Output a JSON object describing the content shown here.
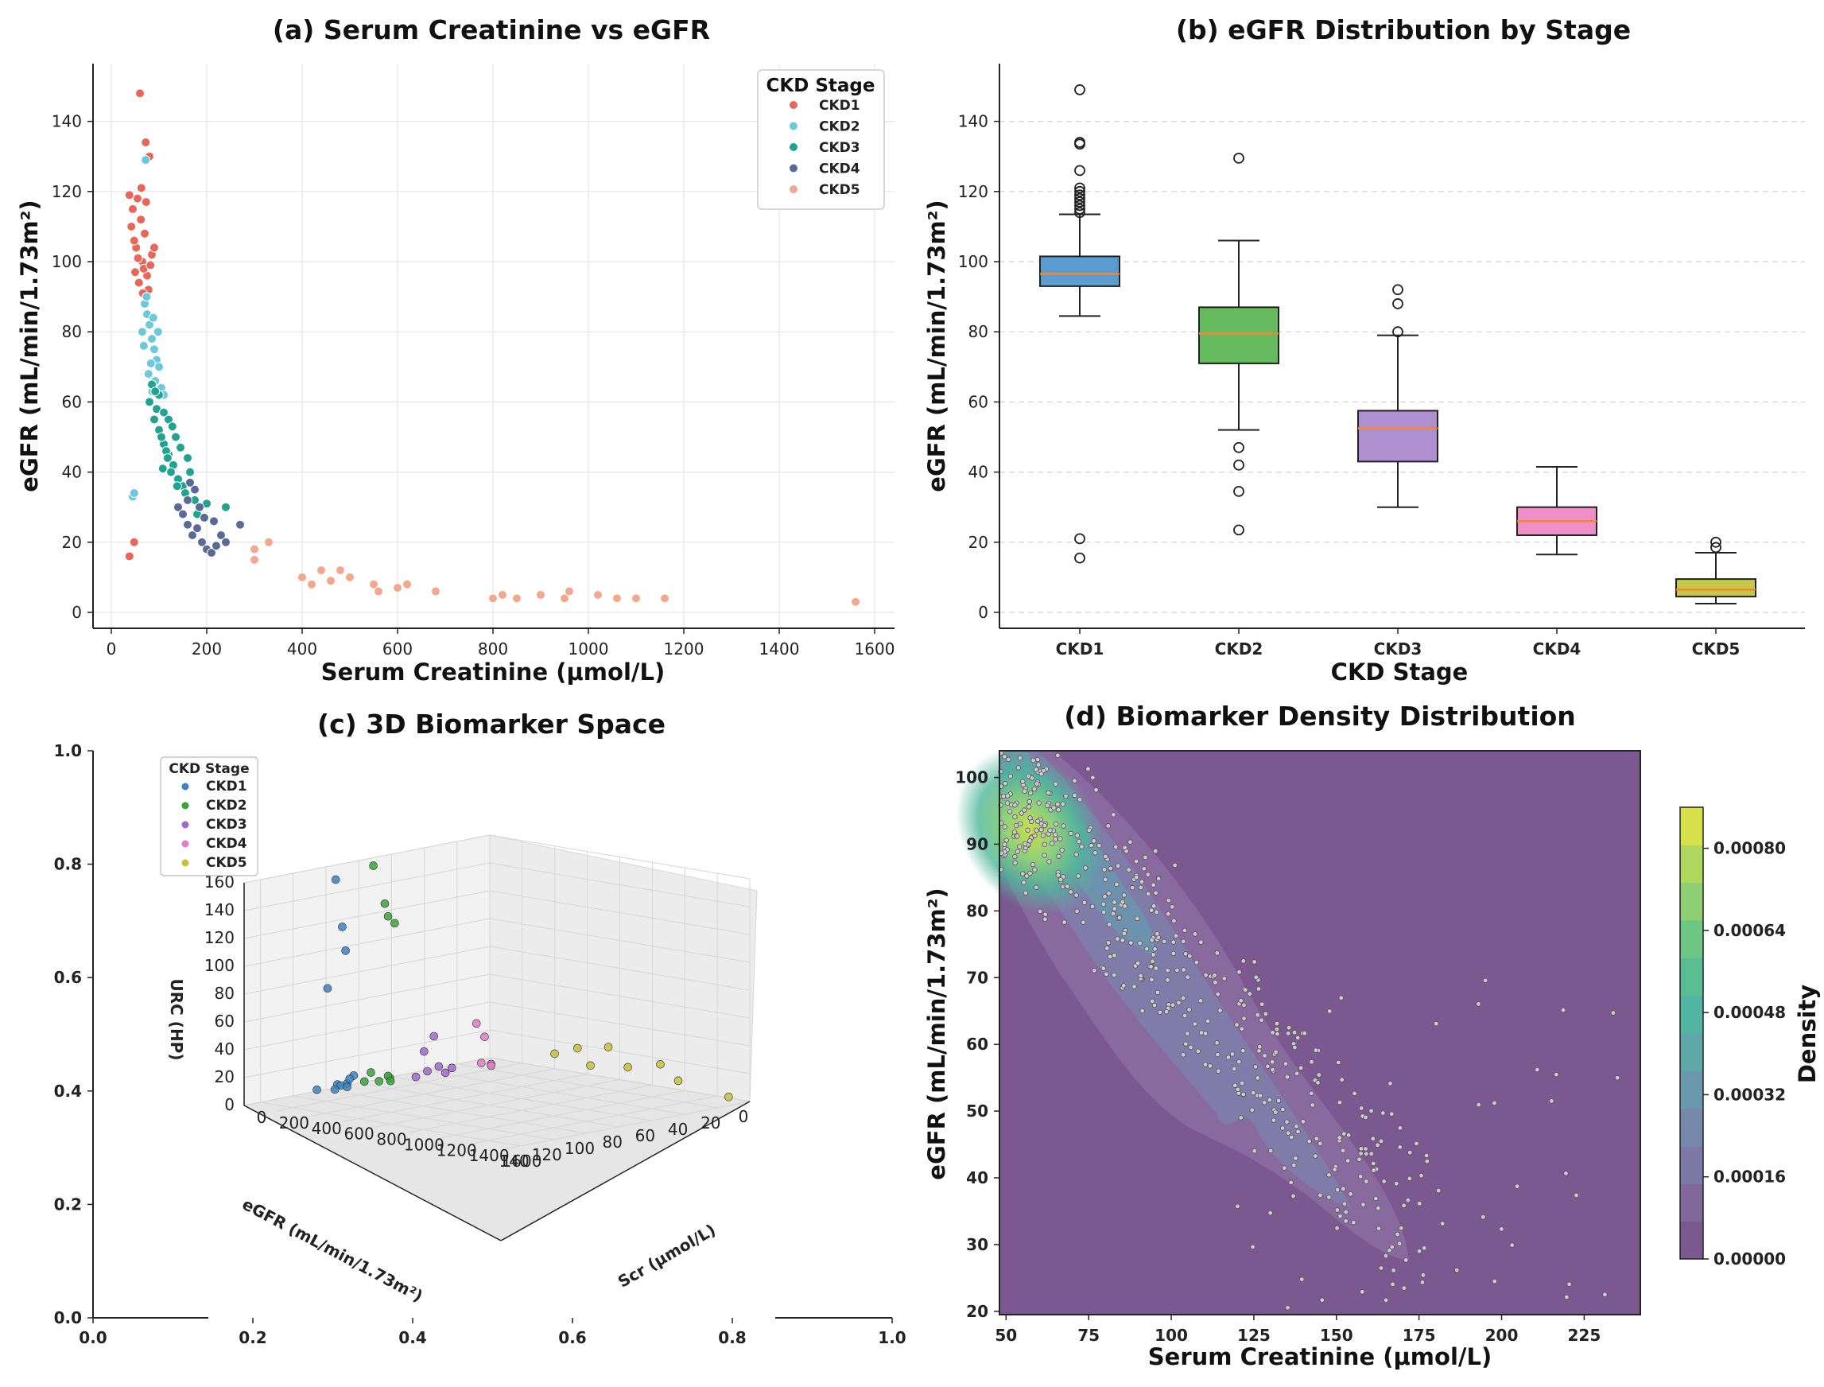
{
  "panel_a": {
    "title": "(a) Serum Creatinine vs eGFR",
    "xlabel": "Serum Creatinine (μmol/L)",
    "ylabel": "eGFR (mL/min/1.73m²)",
    "legend_title": "CKD Stage",
    "legend": [
      {
        "name": "CKD1",
        "color": "#e8675a"
      },
      {
        "name": "CKD2",
        "color": "#6cc8dd"
      },
      {
        "name": "CKD3",
        "color": "#21a391"
      },
      {
        "name": "CKD4",
        "color": "#5a6a97"
      },
      {
        "name": "CKD5",
        "color": "#f2a88f"
      }
    ],
    "xticks": [
      "0",
      "200",
      "400",
      "600",
      "800",
      "1000",
      "1200",
      "1400",
      "1600"
    ],
    "yticks": [
      "0",
      "20",
      "40",
      "60",
      "80",
      "100",
      "120",
      "140"
    ]
  },
  "panel_b": {
    "title": "(b) eGFR Distribution by Stage",
    "xlabel": "CKD Stage",
    "ylabel": "eGFR (mL/min/1.73m²)",
    "yticks": [
      "0",
      "20",
      "40",
      "60",
      "80",
      "100",
      "120",
      "140"
    ]
  },
  "panel_c": {
    "title": "(c) 3D Biomarker Space",
    "legend_title": "CKD Stage",
    "legend": [
      {
        "name": "CKD1",
        "color": "#3c82c3"
      },
      {
        "name": "CKD2",
        "color": "#3aa43a"
      },
      {
        "name": "CKD3",
        "color": "#a169cf"
      },
      {
        "name": "CKD4",
        "color": "#e27bc8"
      },
      {
        "name": "CKD5",
        "color": "#c6c13a"
      }
    ],
    "outer_xticks": [
      "0.0",
      "0.2",
      "0.4",
      "0.6",
      "0.8",
      "1.0"
    ],
    "outer_yticks": [
      "0.0",
      "0.2",
      "0.4",
      "0.6",
      "0.8",
      "1.0"
    ],
    "zlabel": "URC (HP)",
    "egfr_label": "eGFR (mL/min/1.73m²)",
    "scr_label": "Scr (μmol/L)",
    "zticks": [
      "0",
      "20",
      "40",
      "60",
      "80",
      "100",
      "120",
      "140",
      "160"
    ],
    "egfr_ticks": [
      "0",
      "20",
      "40",
      "60",
      "80",
      "100",
      "120",
      "140"
    ],
    "scr_ticks": [
      "0",
      "200",
      "400",
      "600",
      "800",
      "1000",
      "1200",
      "1400",
      "1600"
    ]
  },
  "panel_d": {
    "title": "(d) Biomarker Density Distribution",
    "xlabel": "Serum Creatinine (μmol/L)",
    "ylabel": "eGFR (mL/min/1.73m²)",
    "colorbar_label": "Density",
    "xticks": [
      "50",
      "75",
      "100",
      "125",
      "150",
      "175",
      "200",
      "225"
    ],
    "yticks": [
      "20",
      "30",
      "40",
      "50",
      "60",
      "70",
      "80",
      "90",
      "100"
    ],
    "cbar_ticks": [
      "0.00000",
      "0.00016",
      "0.00032",
      "0.00048",
      "0.00064",
      "0.00080"
    ]
  },
  "chart_data": [
    {
      "type": "scatter",
      "title": "(a) Serum Creatinine vs eGFR",
      "xlabel": "Serum Creatinine (μmol/L)",
      "ylabel": "eGFR (mL/min/1.73m²)",
      "xlim": [
        -40,
        1640
      ],
      "ylim": [
        -5,
        150
      ],
      "grid": true,
      "legend_placement": "top-right",
      "series": [
        {
          "name": "CKD1",
          "color": "#e8675a",
          "points": [
            [
              38,
              16
            ],
            [
              48,
              20
            ],
            [
              60,
              148
            ],
            [
              72,
              134
            ],
            [
              80,
              130
            ],
            [
              55,
              118
            ],
            [
              62,
              112
            ],
            [
              70,
              108
            ],
            [
              45,
              115
            ],
            [
              52,
              104
            ],
            [
              65,
              100
            ],
            [
              75,
              96
            ],
            [
              85,
              102
            ],
            [
              58,
              94
            ],
            [
              68,
              98
            ],
            [
              78,
              92
            ],
            [
              42,
              110
            ],
            [
              50,
              97
            ],
            [
              90,
              104
            ],
            [
              63,
              121
            ],
            [
              73,
              117
            ],
            [
              48,
              106
            ],
            [
              56,
              101
            ],
            [
              82,
              99
            ],
            [
              66,
              91
            ],
            [
              38,
              119
            ]
          ]
        },
        {
          "name": "CKD2",
          "color": "#6cc8dd",
          "points": [
            [
              45,
              33
            ],
            [
              48,
              34
            ],
            [
              72,
              129
            ],
            [
              70,
              88
            ],
            [
              75,
              85
            ],
            [
              80,
              82
            ],
            [
              85,
              78
            ],
            [
              90,
              75
            ],
            [
              65,
              80
            ],
            [
              95,
              72
            ],
            [
              100,
              70
            ],
            [
              78,
              68
            ],
            [
              88,
              84
            ],
            [
              92,
              66
            ],
            [
              105,
              64
            ],
            [
              68,
              76
            ],
            [
              83,
              71
            ],
            [
              98,
              80
            ],
            [
              110,
              62
            ],
            [
              74,
              90
            ],
            [
              86,
              63
            ]
          ]
        },
        {
          "name": "CKD3",
          "color": "#21a391",
          "points": [
            [
              80,
              60
            ],
            [
              90,
              55
            ],
            [
              100,
              52
            ],
            [
              110,
              48
            ],
            [
              120,
              45
            ],
            [
              130,
              42
            ],
            [
              95,
              58
            ],
            [
              105,
              50
            ],
            [
              115,
              46
            ],
            [
              125,
              40
            ],
            [
              140,
              38
            ],
            [
              150,
              36
            ],
            [
              160,
              44
            ],
            [
              85,
              65
            ],
            [
              100,
              62
            ],
            [
              120,
              55
            ],
            [
              135,
              50
            ],
            [
              145,
              47
            ],
            [
              165,
              40
            ],
            [
              110,
              57
            ],
            [
              128,
              53
            ],
            [
              155,
              34
            ],
            [
              175,
              32
            ],
            [
              180,
              28
            ],
            [
              200,
              31
            ],
            [
              240,
              30
            ],
            [
              92,
              63
            ],
            [
              118,
              44
            ],
            [
              138,
              36
            ],
            [
              108,
              41
            ]
          ]
        },
        {
          "name": "CKD4",
          "color": "#5a6a97",
          "points": [
            [
              140,
              30
            ],
            [
              150,
              28
            ],
            [
              160,
              25
            ],
            [
              170,
              22
            ],
            [
              180,
              24
            ],
            [
              190,
              20
            ],
            [
              200,
              18
            ],
            [
              210,
              17
            ],
            [
              220,
              19
            ],
            [
              230,
              22
            ],
            [
              175,
              35
            ],
            [
              195,
              27
            ],
            [
              215,
              26
            ],
            [
              160,
              32
            ],
            [
              185,
              30
            ],
            [
              240,
              20
            ],
            [
              270,
              25
            ],
            [
              165,
              37
            ]
          ]
        },
        {
          "name": "CKD5",
          "color": "#f2a88f",
          "points": [
            [
              300,
              15
            ],
            [
              300,
              18
            ],
            [
              330,
              20
            ],
            [
              400,
              10
            ],
            [
              420,
              8
            ],
            [
              460,
              9
            ],
            [
              480,
              12
            ],
            [
              500,
              10
            ],
            [
              550,
              8
            ],
            [
              560,
              6
            ],
            [
              600,
              7
            ],
            [
              680,
              6
            ],
            [
              800,
              4
            ],
            [
              820,
              5
            ],
            [
              850,
              4
            ],
            [
              900,
              5
            ],
            [
              950,
              4
            ],
            [
              960,
              6
            ],
            [
              1020,
              5
            ],
            [
              1060,
              4
            ],
            [
              1100,
              4
            ],
            [
              1160,
              4
            ],
            [
              1560,
              3
            ],
            [
              440,
              12
            ],
            [
              620,
              8
            ]
          ]
        }
      ]
    },
    {
      "type": "box",
      "title": "(b) eGFR Distribution by Stage",
      "xlabel": "CKD Stage",
      "ylabel": "eGFR (mL/min/1.73m²)",
      "categories": [
        "CKD1",
        "CKD2",
        "CKD3",
        "CKD4",
        "CKD5"
      ],
      "colors": [
        "#5b9bd0",
        "#66bb5f",
        "#b08fd1",
        "#ef8ec7",
        "#c9c74a"
      ],
      "ylim": [
        -5,
        155
      ],
      "boxes": [
        {
          "whisker_low": 84.5,
          "q1": 93,
          "median": 96.5,
          "q3": 101.5,
          "whisker_high": 113.5,
          "outliers": [
            15.5,
            21,
            114,
            115,
            116,
            117,
            118,
            119,
            120,
            121,
            126,
            133.5,
            134,
            149
          ]
        },
        {
          "whisker_low": 52,
          "q1": 71,
          "median": 79.5,
          "q3": 87,
          "whisker_high": 106,
          "outliers": [
            23.5,
            34.5,
            42,
            47,
            129.5
          ]
        },
        {
          "whisker_low": 30,
          "q1": 43,
          "median": 52.5,
          "q3": 57.5,
          "whisker_high": 79,
          "outliers": [
            80,
            88,
            92
          ]
        },
        {
          "whisker_low": 16.5,
          "q1": 22,
          "median": 26,
          "q3": 30,
          "whisker_high": 41.5,
          "outliers": []
        },
        {
          "whisker_low": 2.5,
          "q1": 4.5,
          "median": 6.5,
          "q3": 9.5,
          "whisker_high": 17,
          "outliers": [
            18.5,
            20
          ]
        }
      ]
    },
    {
      "type": "scatter3d",
      "title": "(c) 3D Biomarker Space",
      "zlabel": "URC (HP)",
      "egfr_label": "eGFR (mL/min/1.73m²)",
      "scr_label": "Scr (μmol/L)",
      "series": [
        {
          "name": "CKD1",
          "color": "#3c82c3",
          "points": [
            [
              60,
              100,
              152
            ],
            [
              80,
              98,
              118
            ],
            [
              70,
              95,
              100
            ],
            [
              60,
              105,
              75
            ],
            [
              90,
              92,
              10
            ],
            [
              70,
              100,
              5
            ],
            [
              50,
              96,
              3
            ],
            [
              110,
              98,
              6
            ],
            [
              75,
              102,
              2
            ],
            [
              120,
              99,
              4
            ],
            [
              45,
              110,
              3
            ],
            [
              85,
              94,
              8
            ]
          ]
        },
        {
          "name": "CKD2",
          "color": "#3aa43a",
          "points": [
            [
              90,
              80,
              158
            ],
            [
              110,
              75,
              130
            ],
            [
              100,
              72,
              120
            ],
            [
              120,
              70,
              115
            ],
            [
              95,
              82,
              10
            ],
            [
              130,
              74,
              5
            ],
            [
              105,
              78,
              3
            ],
            [
              140,
              76,
              7
            ],
            [
              85,
              85,
              4
            ],
            [
              115,
              72,
              2
            ]
          ]
        },
        {
          "name": "CKD3",
          "color": "#a169cf",
          "points": [
            [
              160,
              50,
              30
            ],
            [
              150,
              55,
              20
            ],
            [
              170,
              48,
              8
            ],
            [
              140,
              52,
              5
            ],
            [
              180,
              45,
              3
            ],
            [
              190,
              42,
              6
            ],
            [
              130,
              58,
              2
            ]
          ]
        },
        {
          "name": "CKD4",
          "color": "#e27bc8",
          "points": [
            [
              200,
              28,
              35
            ],
            [
              220,
              25,
              25
            ],
            [
              230,
              22,
              5
            ],
            [
              210,
              20,
              3
            ],
            [
              250,
              30,
              8
            ]
          ]
        },
        {
          "name": "CKD5",
          "color": "#c6c13a",
          "points": [
            [
              500,
              10,
              15
            ],
            [
              700,
              8,
              10
            ],
            [
              900,
              5,
              12
            ],
            [
              1200,
              4,
              8
            ],
            [
              1500,
              3,
              2
            ],
            [
              600,
              6,
              20
            ],
            [
              1100,
              5,
              18
            ],
            [
              800,
              7,
              25
            ]
          ]
        }
      ]
    },
    {
      "type": "heatmap",
      "title": "(d) Biomarker Density Distribution",
      "xlabel": "Serum Creatinine (μmol/L)",
      "ylabel": "eGFR (mL/min/1.73m²)",
      "colorbar_label": "Density",
      "xlim": [
        48,
        242
      ],
      "ylim": [
        19.5,
        104
      ],
      "clim": [
        0,
        0.00088
      ],
      "grid": false,
      "peak": {
        "x": 62,
        "y": 89,
        "density": 0.00082
      }
    }
  ]
}
